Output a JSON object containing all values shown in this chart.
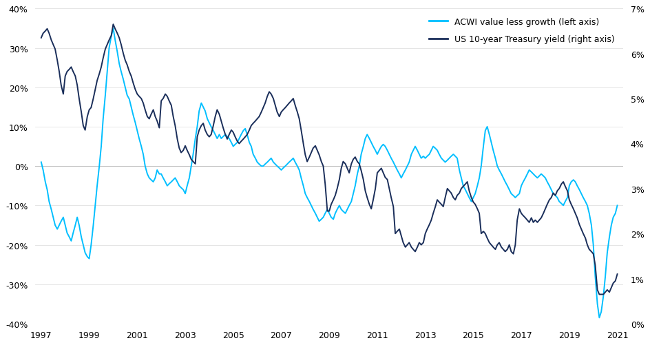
{
  "acwi_color": "#00BFFF",
  "treasury_color": "#1A2E5A",
  "background_color": "#FFFFFF",
  "left_ylim": [
    -40,
    40
  ],
  "right_ylim": [
    0,
    7
  ],
  "left_yticks": [
    -40,
    -30,
    -20,
    -10,
    0,
    10,
    20,
    30,
    40
  ],
  "right_yticks": [
    0,
    1,
    2,
    3,
    4,
    5,
    6,
    7
  ],
  "xticks": [
    1997,
    1999,
    2001,
    2003,
    2005,
    2007,
    2009,
    2011,
    2013,
    2015,
    2017,
    2019,
    2021
  ],
  "legend_acwi": "ACWI value less growth (left axis)",
  "legend_treasury": "US 10-year Treasury yield (right axis)",
  "acwi_data": {
    "years": [
      1997.0,
      1997.08,
      1997.17,
      1997.25,
      1997.33,
      1997.42,
      1997.5,
      1997.58,
      1997.67,
      1997.75,
      1997.83,
      1997.92,
      1998.0,
      1998.08,
      1998.17,
      1998.25,
      1998.33,
      1998.42,
      1998.5,
      1998.58,
      1998.67,
      1998.75,
      1998.83,
      1998.92,
      1999.0,
      1999.08,
      1999.17,
      1999.25,
      1999.33,
      1999.42,
      1999.5,
      1999.58,
      1999.67,
      1999.75,
      1999.83,
      1999.92,
      2000.0,
      2000.08,
      2000.17,
      2000.25,
      2000.33,
      2000.42,
      2000.5,
      2000.58,
      2000.67,
      2000.75,
      2000.83,
      2000.92,
      2001.0,
      2001.08,
      2001.17,
      2001.25,
      2001.33,
      2001.42,
      2001.5,
      2001.58,
      2001.67,
      2001.75,
      2001.83,
      2001.92,
      2002.0,
      2002.08,
      2002.17,
      2002.25,
      2002.33,
      2002.42,
      2002.5,
      2002.58,
      2002.67,
      2002.75,
      2002.83,
      2002.92,
      2003.0,
      2003.08,
      2003.17,
      2003.25,
      2003.33,
      2003.42,
      2003.5,
      2003.58,
      2003.67,
      2003.75,
      2003.83,
      2003.92,
      2004.0,
      2004.08,
      2004.17,
      2004.25,
      2004.33,
      2004.42,
      2004.5,
      2004.58,
      2004.67,
      2004.75,
      2004.83,
      2004.92,
      2005.0,
      2005.08,
      2005.17,
      2005.25,
      2005.33,
      2005.42,
      2005.5,
      2005.58,
      2005.67,
      2005.75,
      2005.83,
      2005.92,
      2006.0,
      2006.08,
      2006.17,
      2006.25,
      2006.33,
      2006.42,
      2006.5,
      2006.58,
      2006.67,
      2006.75,
      2006.83,
      2006.92,
      2007.0,
      2007.08,
      2007.17,
      2007.25,
      2007.33,
      2007.42,
      2007.5,
      2007.58,
      2007.67,
      2007.75,
      2007.83,
      2007.92,
      2008.0,
      2008.08,
      2008.17,
      2008.25,
      2008.33,
      2008.42,
      2008.5,
      2008.58,
      2008.67,
      2008.75,
      2008.83,
      2008.92,
      2009.0,
      2009.08,
      2009.17,
      2009.25,
      2009.33,
      2009.42,
      2009.5,
      2009.58,
      2009.67,
      2009.75,
      2009.83,
      2009.92,
      2010.0,
      2010.08,
      2010.17,
      2010.25,
      2010.33,
      2010.42,
      2010.5,
      2010.58,
      2010.67,
      2010.75,
      2010.83,
      2010.92,
      2011.0,
      2011.08,
      2011.17,
      2011.25,
      2011.33,
      2011.42,
      2011.5,
      2011.58,
      2011.67,
      2011.75,
      2011.83,
      2011.92,
      2012.0,
      2012.08,
      2012.17,
      2012.25,
      2012.33,
      2012.42,
      2012.5,
      2012.58,
      2012.67,
      2012.75,
      2012.83,
      2012.92,
      2013.0,
      2013.08,
      2013.17,
      2013.25,
      2013.33,
      2013.42,
      2013.5,
      2013.58,
      2013.67,
      2013.75,
      2013.83,
      2013.92,
      2014.0,
      2014.08,
      2014.17,
      2014.25,
      2014.33,
      2014.42,
      2014.5,
      2014.58,
      2014.67,
      2014.75,
      2014.83,
      2014.92,
      2015.0,
      2015.08,
      2015.17,
      2015.25,
      2015.33,
      2015.42,
      2015.5,
      2015.58,
      2015.67,
      2015.75,
      2015.83,
      2015.92,
      2016.0,
      2016.08,
      2016.17,
      2016.25,
      2016.33,
      2016.42,
      2016.5,
      2016.58,
      2016.67,
      2016.75,
      2016.83,
      2016.92,
      2017.0,
      2017.08,
      2017.17,
      2017.25,
      2017.33,
      2017.42,
      2017.5,
      2017.58,
      2017.67,
      2017.75,
      2017.83,
      2017.92,
      2018.0,
      2018.08,
      2018.17,
      2018.25,
      2018.33,
      2018.42,
      2018.5,
      2018.58,
      2018.67,
      2018.75,
      2018.83,
      2018.92,
      2019.0,
      2019.08,
      2019.17,
      2019.25,
      2019.33,
      2019.42,
      2019.5,
      2019.58,
      2019.67,
      2019.75,
      2019.83,
      2019.92,
      2020.0,
      2020.08,
      2020.17,
      2020.25,
      2020.33,
      2020.42,
      2020.5,
      2020.58,
      2020.67,
      2020.75,
      2020.83,
      2020.92,
      2021.0
    ],
    "values": [
      1.0,
      -1.0,
      -4.0,
      -6.0,
      -9.0,
      -11.0,
      -13.0,
      -15.0,
      -16.0,
      -15.0,
      -14.0,
      -13.0,
      -15.0,
      -17.0,
      -18.0,
      -19.0,
      -17.0,
      -15.0,
      -13.0,
      -15.0,
      -18.0,
      -20.0,
      -22.0,
      -23.0,
      -23.5,
      -20.0,
      -15.0,
      -10.0,
      -5.0,
      0.0,
      5.0,
      12.0,
      18.0,
      24.0,
      30.0,
      33.0,
      35.0,
      32.0,
      29.0,
      26.0,
      24.0,
      22.0,
      20.0,
      18.0,
      17.0,
      15.0,
      13.0,
      11.0,
      9.0,
      7.0,
      5.0,
      3.0,
      0.0,
      -2.0,
      -3.0,
      -3.5,
      -4.0,
      -3.0,
      -1.0,
      -2.0,
      -2.0,
      -3.0,
      -4.0,
      -5.0,
      -4.5,
      -4.0,
      -3.5,
      -3.0,
      -4.0,
      -5.0,
      -5.5,
      -6.0,
      -7.0,
      -5.0,
      -3.0,
      0.0,
      3.0,
      7.0,
      10.0,
      14.0,
      16.0,
      15.0,
      14.0,
      12.0,
      11.0,
      10.0,
      9.0,
      8.0,
      7.0,
      8.0,
      7.0,
      7.5,
      8.0,
      7.5,
      7.0,
      6.0,
      5.0,
      5.5,
      6.0,
      7.0,
      8.0,
      9.0,
      9.5,
      8.0,
      6.0,
      5.0,
      3.0,
      2.0,
      1.0,
      0.5,
      0.0,
      0.0,
      0.5,
      1.0,
      1.5,
      2.0,
      1.0,
      0.5,
      0.0,
      -0.5,
      -1.0,
      -0.5,
      0.0,
      0.5,
      1.0,
      1.5,
      2.0,
      1.0,
      0.0,
      -1.0,
      -3.0,
      -5.0,
      -7.0,
      -8.0,
      -9.0,
      -10.0,
      -11.0,
      -12.0,
      -13.0,
      -14.0,
      -13.5,
      -13.0,
      -12.0,
      -11.0,
      -12.0,
      -13.0,
      -13.5,
      -12.0,
      -11.0,
      -10.0,
      -11.0,
      -11.5,
      -12.0,
      -11.0,
      -10.0,
      -9.0,
      -7.0,
      -5.0,
      -2.0,
      0.0,
      3.0,
      5.0,
      7.0,
      8.0,
      7.0,
      6.0,
      5.0,
      4.0,
      3.0,
      4.0,
      5.0,
      5.5,
      5.0,
      4.0,
      3.0,
      2.0,
      1.0,
      0.0,
      -1.0,
      -2.0,
      -3.0,
      -2.0,
      -1.0,
      0.0,
      1.0,
      3.0,
      4.0,
      5.0,
      4.0,
      3.0,
      2.0,
      2.5,
      2.0,
      2.5,
      3.0,
      4.0,
      5.0,
      4.5,
      4.0,
      3.0,
      2.0,
      1.5,
      1.0,
      1.5,
      2.0,
      2.5,
      3.0,
      2.5,
      2.0,
      -1.0,
      -3.0,
      -5.0,
      -6.0,
      -7.0,
      -8.0,
      -9.0,
      -8.0,
      -7.0,
      -5.0,
      -3.0,
      0.0,
      5.0,
      9.0,
      10.0,
      8.0,
      6.0,
      4.0,
      2.0,
      0.0,
      -1.0,
      -2.0,
      -3.0,
      -4.0,
      -5.0,
      -6.0,
      -7.0,
      -7.5,
      -8.0,
      -7.5,
      -7.0,
      -5.0,
      -4.0,
      -3.0,
      -2.0,
      -1.0,
      -1.5,
      -2.0,
      -2.5,
      -3.0,
      -2.5,
      -2.0,
      -2.5,
      -3.0,
      -4.0,
      -5.0,
      -6.0,
      -7.0,
      -7.5,
      -8.0,
      -9.0,
      -9.5,
      -10.0,
      -9.0,
      -8.0,
      -5.0,
      -4.0,
      -3.5,
      -4.0,
      -5.0,
      -6.0,
      -7.0,
      -8.0,
      -9.0,
      -10.0,
      -12.0,
      -15.0,
      -20.0,
      -28.0,
      -35.0,
      -38.5,
      -37.0,
      -33.0,
      -28.0,
      -22.0,
      -18.0,
      -15.0,
      -13.0,
      -12.0,
      -10.0
    ]
  },
  "treasury_data": {
    "years": [
      1997.0,
      1997.08,
      1997.17,
      1997.25,
      1997.33,
      1997.42,
      1997.5,
      1997.58,
      1997.67,
      1997.75,
      1997.83,
      1997.92,
      1998.0,
      1998.08,
      1998.17,
      1998.25,
      1998.33,
      1998.42,
      1998.5,
      1998.58,
      1998.67,
      1998.75,
      1998.83,
      1998.92,
      1999.0,
      1999.08,
      1999.17,
      1999.25,
      1999.33,
      1999.42,
      1999.5,
      1999.58,
      1999.67,
      1999.75,
      1999.83,
      1999.92,
      2000.0,
      2000.08,
      2000.17,
      2000.25,
      2000.33,
      2000.42,
      2000.5,
      2000.58,
      2000.67,
      2000.75,
      2000.83,
      2000.92,
      2001.0,
      2001.08,
      2001.17,
      2001.25,
      2001.33,
      2001.42,
      2001.5,
      2001.58,
      2001.67,
      2001.75,
      2001.83,
      2001.92,
      2002.0,
      2002.08,
      2002.17,
      2002.25,
      2002.33,
      2002.42,
      2002.5,
      2002.58,
      2002.67,
      2002.75,
      2002.83,
      2002.92,
      2003.0,
      2003.08,
      2003.17,
      2003.25,
      2003.33,
      2003.42,
      2003.5,
      2003.58,
      2003.67,
      2003.75,
      2003.83,
      2003.92,
      2004.0,
      2004.08,
      2004.17,
      2004.25,
      2004.33,
      2004.42,
      2004.5,
      2004.58,
      2004.67,
      2004.75,
      2004.83,
      2004.92,
      2005.0,
      2005.08,
      2005.17,
      2005.25,
      2005.33,
      2005.42,
      2005.5,
      2005.58,
      2005.67,
      2005.75,
      2005.83,
      2005.92,
      2006.0,
      2006.08,
      2006.17,
      2006.25,
      2006.33,
      2006.42,
      2006.5,
      2006.58,
      2006.67,
      2006.75,
      2006.83,
      2006.92,
      2007.0,
      2007.08,
      2007.17,
      2007.25,
      2007.33,
      2007.42,
      2007.5,
      2007.58,
      2007.67,
      2007.75,
      2007.83,
      2007.92,
      2008.0,
      2008.08,
      2008.17,
      2008.25,
      2008.33,
      2008.42,
      2008.5,
      2008.58,
      2008.67,
      2008.75,
      2008.83,
      2008.92,
      2009.0,
      2009.08,
      2009.17,
      2009.25,
      2009.33,
      2009.42,
      2009.5,
      2009.58,
      2009.67,
      2009.75,
      2009.83,
      2009.92,
      2010.0,
      2010.08,
      2010.17,
      2010.25,
      2010.33,
      2010.42,
      2010.5,
      2010.58,
      2010.67,
      2010.75,
      2010.83,
      2010.92,
      2011.0,
      2011.08,
      2011.17,
      2011.25,
      2011.33,
      2011.42,
      2011.5,
      2011.58,
      2011.67,
      2011.75,
      2011.83,
      2011.92,
      2012.0,
      2012.08,
      2012.17,
      2012.25,
      2012.33,
      2012.42,
      2012.5,
      2012.58,
      2012.67,
      2012.75,
      2012.83,
      2012.92,
      2013.0,
      2013.08,
      2013.17,
      2013.25,
      2013.33,
      2013.42,
      2013.5,
      2013.58,
      2013.67,
      2013.75,
      2013.83,
      2013.92,
      2014.0,
      2014.08,
      2014.17,
      2014.25,
      2014.33,
      2014.42,
      2014.5,
      2014.58,
      2014.67,
      2014.75,
      2014.83,
      2014.92,
      2015.0,
      2015.08,
      2015.17,
      2015.25,
      2015.33,
      2015.42,
      2015.5,
      2015.58,
      2015.67,
      2015.75,
      2015.83,
      2015.92,
      2016.0,
      2016.08,
      2016.17,
      2016.25,
      2016.33,
      2016.42,
      2016.5,
      2016.58,
      2016.67,
      2016.75,
      2016.83,
      2016.92,
      2017.0,
      2017.08,
      2017.17,
      2017.25,
      2017.33,
      2017.42,
      2017.5,
      2017.58,
      2017.67,
      2017.75,
      2017.83,
      2017.92,
      2018.0,
      2018.08,
      2018.17,
      2018.25,
      2018.33,
      2018.42,
      2018.5,
      2018.58,
      2018.67,
      2018.75,
      2018.83,
      2018.92,
      2019.0,
      2019.08,
      2019.17,
      2019.25,
      2019.33,
      2019.42,
      2019.5,
      2019.58,
      2019.67,
      2019.75,
      2019.83,
      2019.92,
      2020.0,
      2020.08,
      2020.17,
      2020.25,
      2020.33,
      2020.42,
      2020.5,
      2020.58,
      2020.67,
      2020.75,
      2020.83,
      2020.92,
      2021.0
    ],
    "values": [
      6.35,
      6.45,
      6.5,
      6.55,
      6.45,
      6.3,
      6.2,
      6.1,
      5.85,
      5.6,
      5.3,
      5.1,
      5.5,
      5.6,
      5.65,
      5.7,
      5.6,
      5.5,
      5.3,
      5.0,
      4.7,
      4.4,
      4.3,
      4.6,
      4.75,
      4.8,
      5.0,
      5.2,
      5.4,
      5.55,
      5.7,
      5.9,
      6.1,
      6.2,
      6.3,
      6.4,
      6.65,
      6.55,
      6.45,
      6.35,
      6.2,
      6.0,
      5.85,
      5.75,
      5.6,
      5.5,
      5.35,
      5.2,
      5.1,
      5.05,
      5.0,
      4.9,
      4.75,
      4.6,
      4.55,
      4.65,
      4.75,
      4.6,
      4.5,
      4.35,
      4.95,
      5.0,
      5.1,
      5.05,
      4.95,
      4.85,
      4.6,
      4.4,
      4.1,
      3.9,
      3.8,
      3.85,
      3.95,
      3.85,
      3.75,
      3.65,
      3.6,
      3.55,
      4.15,
      4.3,
      4.4,
      4.45,
      4.3,
      4.2,
      4.15,
      4.2,
      4.4,
      4.6,
      4.75,
      4.65,
      4.5,
      4.35,
      4.2,
      4.1,
      4.2,
      4.3,
      4.25,
      4.15,
      4.05,
      4.0,
      4.05,
      4.1,
      4.15,
      4.2,
      4.3,
      4.4,
      4.45,
      4.5,
      4.55,
      4.6,
      4.7,
      4.8,
      4.9,
      5.05,
      5.15,
      5.1,
      5.0,
      4.85,
      4.7,
      4.6,
      4.7,
      4.75,
      4.8,
      4.85,
      4.9,
      4.95,
      5.0,
      4.85,
      4.7,
      4.55,
      4.3,
      4.0,
      3.75,
      3.6,
      3.7,
      3.8,
      3.9,
      3.95,
      3.85,
      3.75,
      3.6,
      3.5,
      3.1,
      2.5,
      2.5,
      2.65,
      2.75,
      2.85,
      3.0,
      3.2,
      3.45,
      3.6,
      3.55,
      3.45,
      3.35,
      3.55,
      3.65,
      3.7,
      3.6,
      3.55,
      3.4,
      3.2,
      2.95,
      2.8,
      2.65,
      2.55,
      2.75,
      3.0,
      3.35,
      3.4,
      3.45,
      3.35,
      3.25,
      3.2,
      3.0,
      2.8,
      2.6,
      2.0,
      2.05,
      2.1,
      1.95,
      1.8,
      1.7,
      1.75,
      1.8,
      1.7,
      1.65,
      1.6,
      1.7,
      1.8,
      1.75,
      1.8,
      2.0,
      2.1,
      2.2,
      2.3,
      2.45,
      2.6,
      2.75,
      2.7,
      2.65,
      2.6,
      2.8,
      3.0,
      2.95,
      2.9,
      2.8,
      2.75,
      2.85,
      2.9,
      3.0,
      3.05,
      3.1,
      3.15,
      2.95,
      2.8,
      2.7,
      2.65,
      2.55,
      2.45,
      2.0,
      2.05,
      2.0,
      1.9,
      1.8,
      1.75,
      1.7,
      1.65,
      1.75,
      1.8,
      1.7,
      1.65,
      1.6,
      1.65,
      1.75,
      1.6,
      1.55,
      1.75,
      2.3,
      2.55,
      2.45,
      2.4,
      2.35,
      2.3,
      2.25,
      2.35,
      2.25,
      2.3,
      2.25,
      2.3,
      2.35,
      2.45,
      2.55,
      2.65,
      2.75,
      2.8,
      2.9,
      2.85,
      2.95,
      3.0,
      3.1,
      3.15,
      3.05,
      2.95,
      2.75,
      2.65,
      2.55,
      2.45,
      2.35,
      2.2,
      2.1,
      2.0,
      1.9,
      1.75,
      1.65,
      1.6,
      1.55,
      1.3,
      0.75,
      0.65,
      0.65,
      0.65,
      0.7,
      0.75,
      0.7,
      0.8,
      0.9,
      0.95,
      1.1
    ]
  }
}
